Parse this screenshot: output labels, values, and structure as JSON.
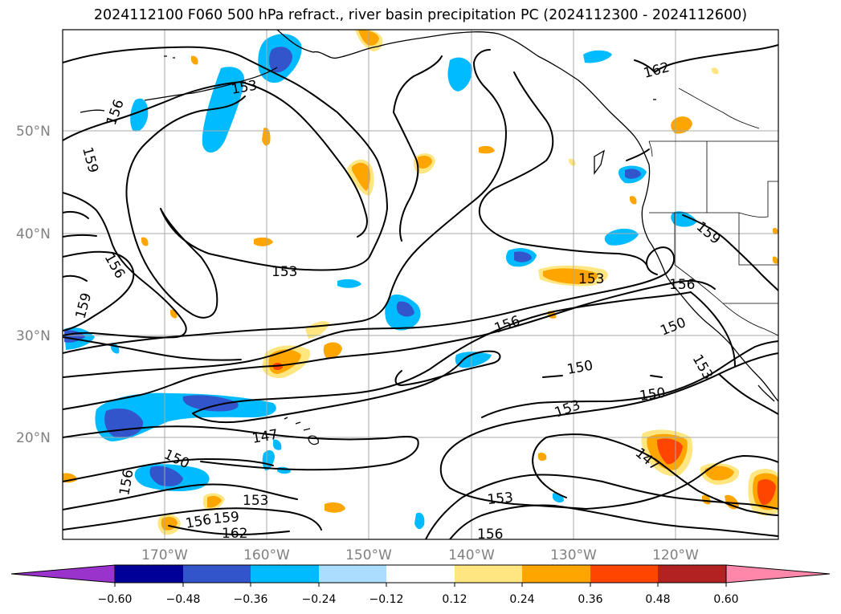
{
  "title": "2024112100 F060 500 hPa refract., river basin precipitation PC (2024112300 - 2024112600)",
  "lat_labels": [
    "50°N",
    "40°N",
    "30°N",
    "20°N"
  ],
  "lon_labels": [
    "170°W",
    "160°W",
    "150°W",
    "140°W",
    "130°W",
    "120°W"
  ],
  "contour_labels": [
    "153",
    "156",
    "159",
    "156",
    "159",
    "153",
    "156",
    "153",
    "156",
    "150",
    "150",
    "153",
    "150",
    "153",
    "147",
    "150",
    "156",
    "153",
    "156",
    "159",
    "162",
    "153",
    "156",
    "147",
    "162",
    "159"
  ],
  "colorbar": {
    "ticks": [
      "−0.60",
      "−0.48",
      "−0.36",
      "−0.24",
      "−0.12",
      "0.12",
      "0.24",
      "0.36",
      "0.48",
      "0.60"
    ],
    "colors": [
      "#9933cc",
      "#000099",
      "#3355cc",
      "#00bbff",
      "#aaddff",
      "#ffffff",
      "#ffe680",
      "#ffa500",
      "#ff4500",
      "#b22222",
      "#ff88aa"
    ]
  },
  "map": {
    "lat_range": [
      10,
      60
    ],
    "lon_range": [
      -180,
      -110
    ],
    "field": "500 hPa refractivity",
    "shading": "river basin precipitation PC"
  }
}
